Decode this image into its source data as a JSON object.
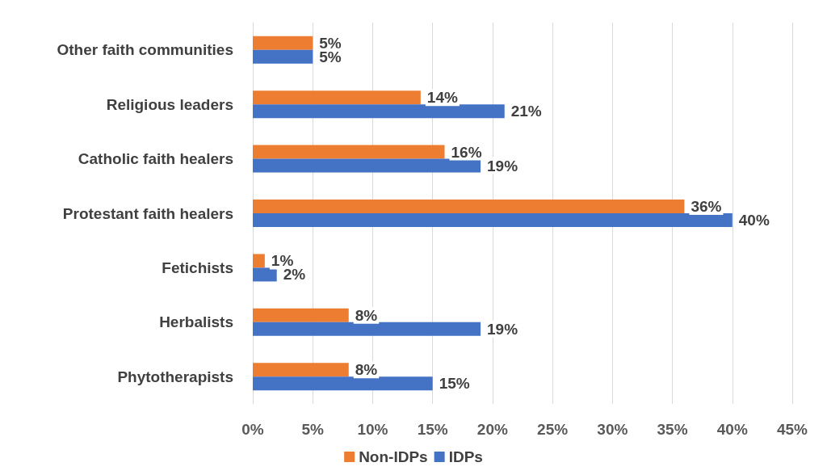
{
  "chart_data": {
    "type": "bar",
    "orientation": "horizontal",
    "categories": [
      "Other faith communities",
      "Religious leaders",
      "Catholic faith healers",
      "Protestant faith healers",
      "Fetichists",
      "Herbalists",
      "Phytotherapists"
    ],
    "series": [
      {
        "name": "Non-IDPs",
        "color": "#ed7d31",
        "values": [
          5,
          14,
          16,
          36,
          1,
          8,
          8
        ],
        "value_labels": [
          "5%",
          "14%",
          "16%",
          "36%",
          "1%",
          "8%",
          "8%"
        ]
      },
      {
        "name": "IDPs",
        "color": "#4472c4",
        "values": [
          5,
          21,
          19,
          40,
          2,
          19,
          15
        ],
        "value_labels": [
          "5%",
          "21%",
          "19%",
          "40%",
          "2%",
          "19%",
          "15%"
        ]
      }
    ],
    "xlim": [
      0,
      45
    ],
    "xticks": [
      {
        "value": 0,
        "label": "0%"
      },
      {
        "value": 5,
        "label": "5%"
      },
      {
        "value": 10,
        "label": "10%"
      },
      {
        "value": 15,
        "label": "15%"
      },
      {
        "value": 20,
        "label": "20%"
      },
      {
        "value": 25,
        "label": "25%"
      },
      {
        "value": 30,
        "label": "30%"
      },
      {
        "value": 35,
        "label": "35%"
      },
      {
        "value": 40,
        "label": "40%"
      },
      {
        "value": 45,
        "label": "45%"
      }
    ],
    "grid": "x",
    "legend": "bottom"
  }
}
